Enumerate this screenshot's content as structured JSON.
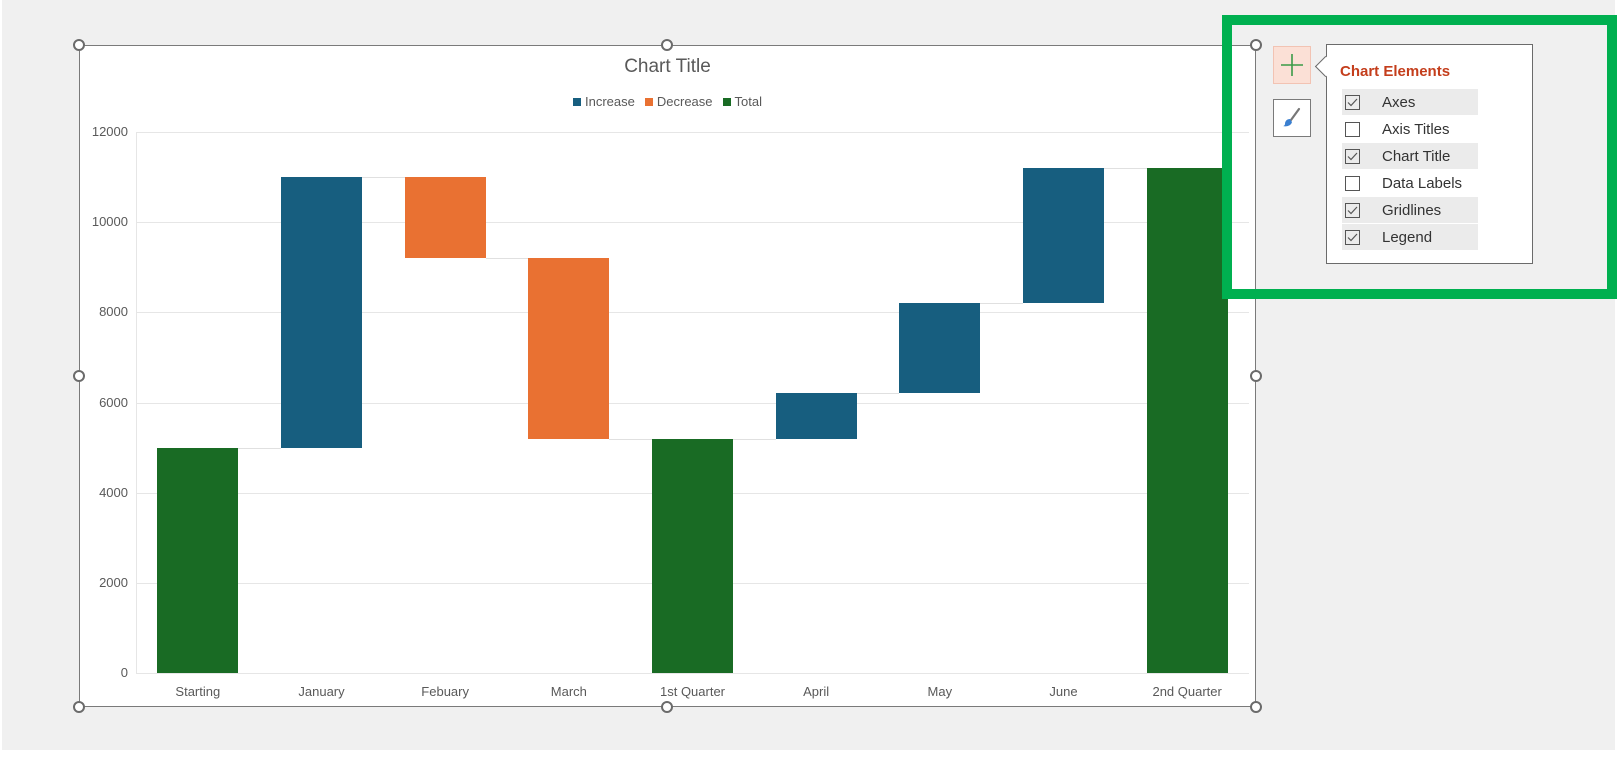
{
  "chart": {
    "title": "Chart Title",
    "legend": [
      {
        "label": "Increase",
        "color": "#175e7f"
      },
      {
        "label": "Decrease",
        "color": "#e97132"
      },
      {
        "label": "Total",
        "color": "#196b24"
      }
    ]
  },
  "chart_data": {
    "type": "bar",
    "subtype": "waterfall",
    "title": "Chart Title",
    "xlabel": "",
    "ylabel": "",
    "ylim": [
      0,
      12000
    ],
    "yticks": [
      "0",
      "2000",
      "4000",
      "6000",
      "8000",
      "10000",
      "12000"
    ],
    "grid": true,
    "legend_position": "top",
    "categories": [
      "Starting",
      "January",
      "Febuary",
      "March",
      "1st Quarter",
      "April",
      "May",
      "June",
      "2nd Quarter"
    ],
    "values": [
      5000,
      6000,
      -1800,
      -4000,
      5200,
      1000,
      2000,
      3000,
      11200
    ],
    "bar_kind": [
      "total",
      "increase",
      "decrease",
      "decrease",
      "total",
      "increase",
      "increase",
      "increase",
      "total"
    ],
    "bar_ranges": [
      [
        0,
        5000
      ],
      [
        5000,
        11000
      ],
      [
        9200,
        11000
      ],
      [
        5200,
        9200
      ],
      [
        0,
        5200
      ],
      [
        5200,
        6200
      ],
      [
        6200,
        8200
      ],
      [
        8200,
        11200
      ],
      [
        0,
        11200
      ]
    ],
    "series": [
      {
        "name": "Increase",
        "color": "#175e7f"
      },
      {
        "name": "Decrease",
        "color": "#e97132"
      },
      {
        "name": "Total",
        "color": "#196b24"
      }
    ]
  },
  "side_buttons": {
    "chart_elements": "chart-elements-plus",
    "chart_styles": "chart-styles-brush"
  },
  "popup": {
    "title": "Chart Elements",
    "options": [
      {
        "label": "Axes",
        "checked": true
      },
      {
        "label": "Axis Titles",
        "checked": false
      },
      {
        "label": "Chart Title",
        "checked": true
      },
      {
        "label": "Data Labels",
        "checked": false
      },
      {
        "label": "Gridlines",
        "checked": true
      },
      {
        "label": "Legend",
        "checked": true
      }
    ]
  }
}
